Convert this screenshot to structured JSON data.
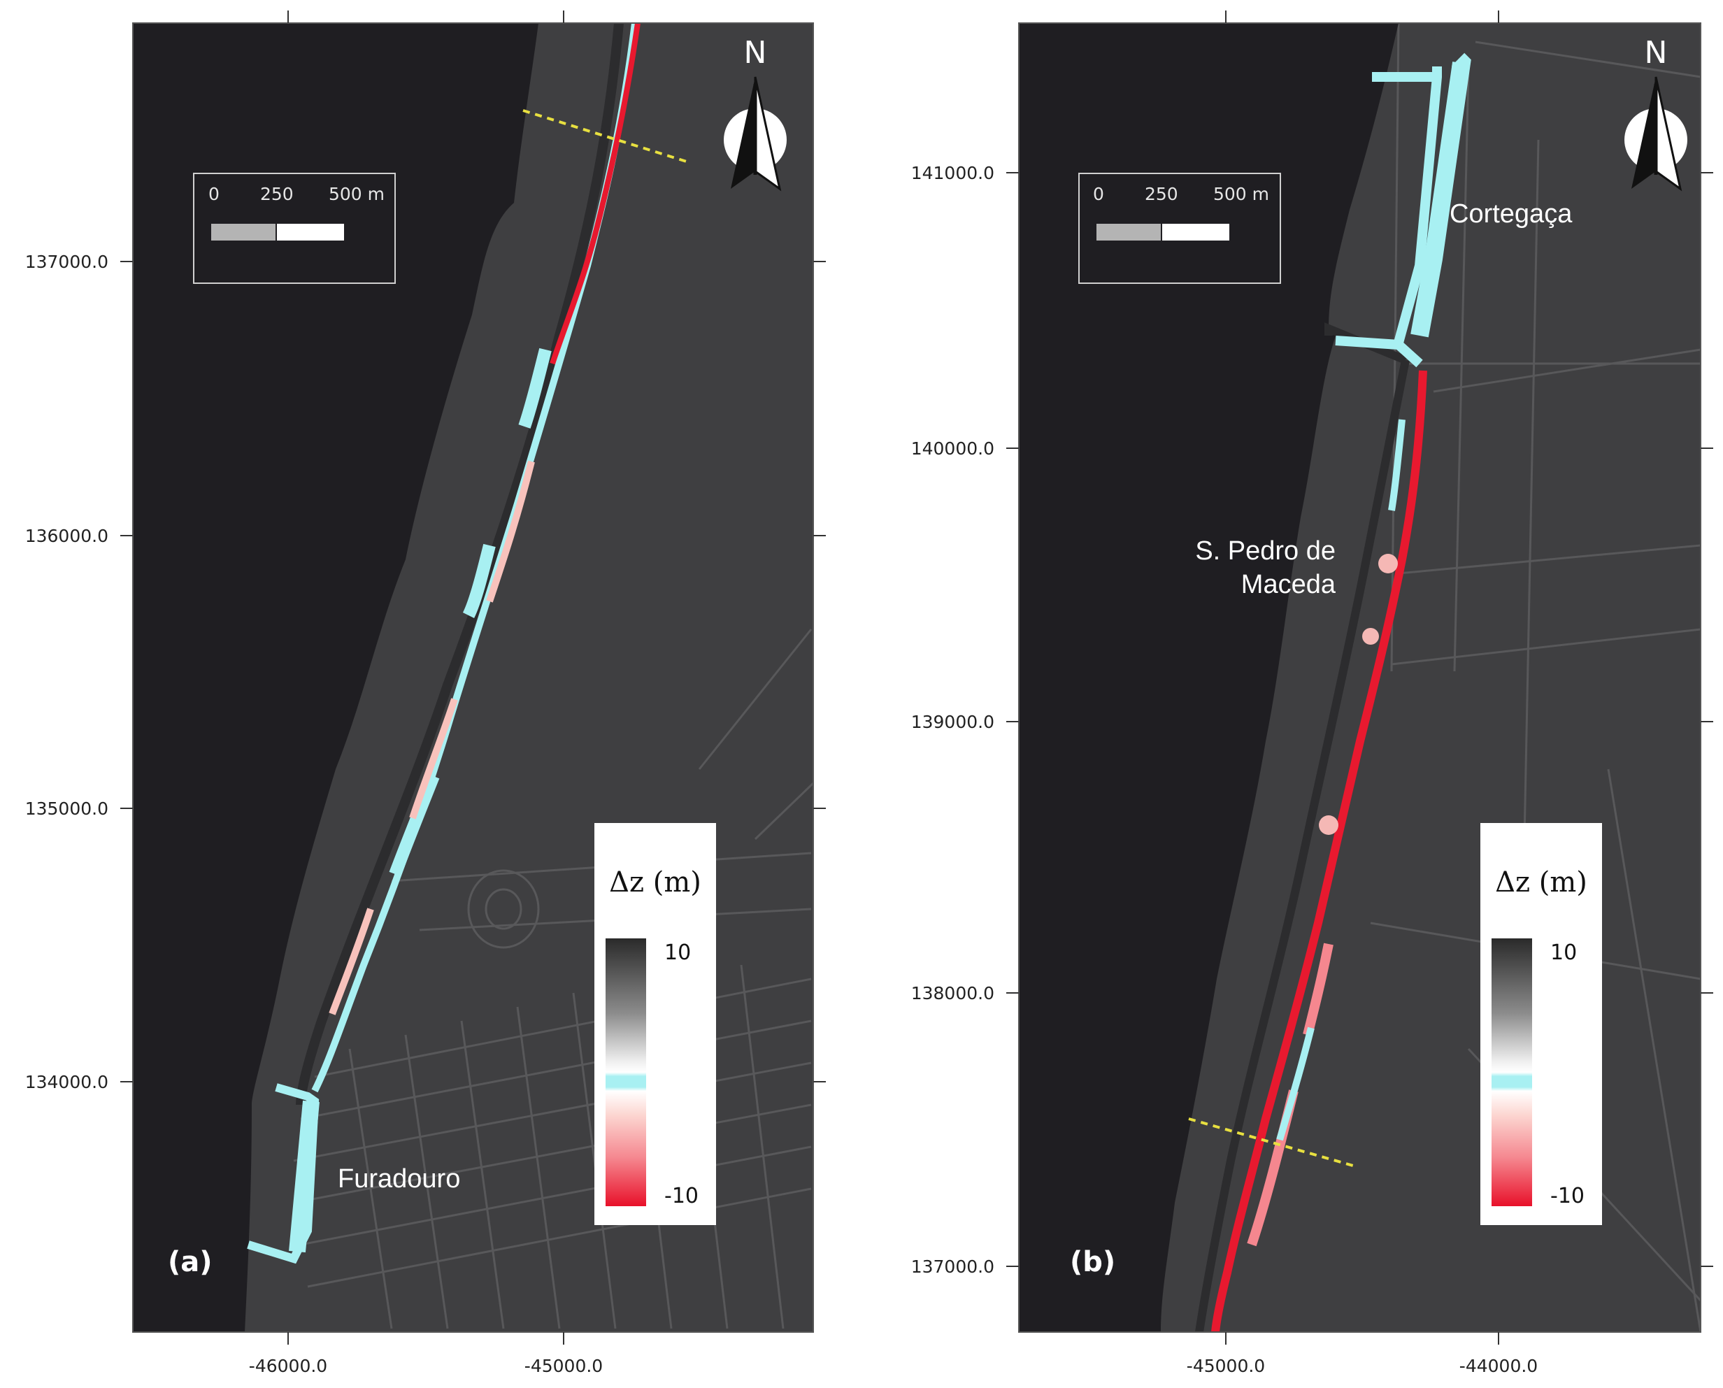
{
  "panels": [
    {
      "tag": "(a)",
      "x_ticks": [
        "-46000.0",
        "-45000.0"
      ],
      "y_ticks": [
        "137000.0",
        "136000.0",
        "135000.0",
        "134000.0"
      ],
      "places": [
        {
          "name": "Furadouro"
        }
      ],
      "scalebar": {
        "labels": [
          "0",
          "250",
          "500 m"
        ]
      },
      "north_label": "N",
      "legend": {
        "title": "Δz (m)",
        "max_label": "10",
        "min_label": "-10"
      }
    },
    {
      "tag": "(b)",
      "x_ticks": [
        "-45000.0",
        "-44000.0"
      ],
      "y_ticks": [
        "141000.0",
        "140000.0",
        "139000.0",
        "138000.0",
        "137000.0"
      ],
      "places": [
        {
          "name": "Cortegaça"
        },
        {
          "name": "S. Pedro de"
        },
        {
          "name": "Maceda"
        }
      ],
      "scalebar": {
        "labels": [
          "0",
          "250",
          "500 m"
        ]
      },
      "north_label": "N",
      "legend": {
        "title": "Δz (m)",
        "max_label": "10",
        "min_label": "-10"
      }
    }
  ],
  "colors": {
    "sea": "#1f1e22",
    "land": "#3f3f41",
    "roads": "#5a5a5c",
    "erosion": "#e8192f",
    "accretion": "#a8f0f2",
    "profile_line": "#e8e040"
  }
}
